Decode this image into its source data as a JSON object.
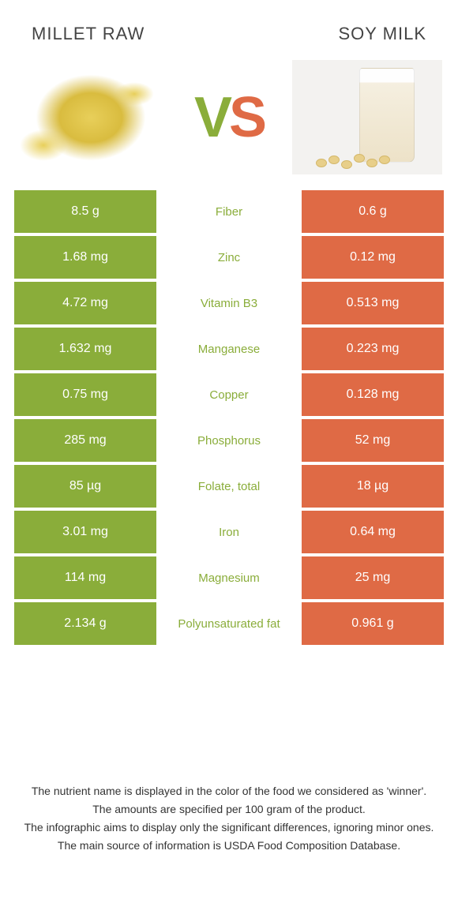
{
  "colors": {
    "left": "#8aad3a",
    "right": "#df6a45",
    "mid_bg": "#ffffff",
    "text_white": "#ffffff"
  },
  "header": {
    "left_title": "Millet raw",
    "right_title": "Soy milk",
    "vs_v": "V",
    "vs_s": "S"
  },
  "rows": [
    {
      "left": "8.5 g",
      "label": "Fiber",
      "right": "0.6 g",
      "winner": "left"
    },
    {
      "left": "1.68 mg",
      "label": "Zinc",
      "right": "0.12 mg",
      "winner": "left"
    },
    {
      "left": "4.72 mg",
      "label": "Vitamin B3",
      "right": "0.513 mg",
      "winner": "left"
    },
    {
      "left": "1.632 mg",
      "label": "Manganese",
      "right": "0.223 mg",
      "winner": "left"
    },
    {
      "left": "0.75 mg",
      "label": "Copper",
      "right": "0.128 mg",
      "winner": "left"
    },
    {
      "left": "285 mg",
      "label": "Phosphorus",
      "right": "52 mg",
      "winner": "left"
    },
    {
      "left": "85 µg",
      "label": "Folate, total",
      "right": "18 µg",
      "winner": "left"
    },
    {
      "left": "3.01 mg",
      "label": "Iron",
      "right": "0.64 mg",
      "winner": "left"
    },
    {
      "left": "114 mg",
      "label": "Magnesium",
      "right": "25 mg",
      "winner": "left"
    },
    {
      "left": "2.134 g",
      "label": "Polyunsaturated fat",
      "right": "0.961 g",
      "winner": "left"
    }
  ],
  "footer": {
    "l1": "The nutrient name is displayed in the color of the food we considered as 'winner'.",
    "l2": "The amounts are specified per 100 gram of the product.",
    "l3": "The infographic aims to display only the significant differences, ignoring minor ones.",
    "l4": "The main source of information is USDA Food Composition Database."
  }
}
